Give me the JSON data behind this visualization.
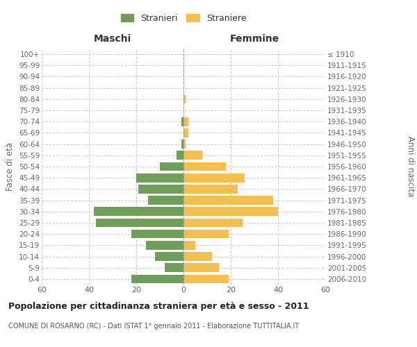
{
  "age_groups": [
    "0-4",
    "5-9",
    "10-14",
    "15-19",
    "20-24",
    "25-29",
    "30-34",
    "35-39",
    "40-44",
    "45-49",
    "50-54",
    "55-59",
    "60-64",
    "65-69",
    "70-74",
    "75-79",
    "80-84",
    "85-89",
    "90-94",
    "95-99",
    "100+"
  ],
  "birth_years": [
    "2006-2010",
    "2001-2005",
    "1996-2000",
    "1991-1995",
    "1986-1990",
    "1981-1985",
    "1976-1980",
    "1971-1975",
    "1966-1970",
    "1961-1965",
    "1956-1960",
    "1951-1955",
    "1946-1950",
    "1941-1945",
    "1936-1940",
    "1931-1935",
    "1926-1930",
    "1921-1925",
    "1916-1920",
    "1911-1915",
    "≤ 1910"
  ],
  "maschi": [
    22,
    8,
    12,
    16,
    22,
    37,
    38,
    15,
    19,
    20,
    10,
    3,
    1,
    0,
    1,
    0,
    0,
    0,
    0,
    0,
    0
  ],
  "femmine": [
    19,
    15,
    12,
    5,
    19,
    25,
    40,
    38,
    23,
    26,
    18,
    8,
    1,
    2,
    2,
    0,
    1,
    0,
    0,
    0,
    0
  ],
  "maschi_color": "#6d9e5a",
  "femmine_color": "#f5bf4f",
  "background_color": "#ffffff",
  "grid_color": "#cccccc",
  "title": "Popolazione per cittadinanza straniera per età e sesso - 2011",
  "subtitle": "COMUNE DI ROSARNO (RC) - Dati ISTAT 1° gennaio 2011 - Elaborazione TUTTITALIA.IT",
  "ylabel_left": "Fasce di età",
  "ylabel_right": "Anni di nascita",
  "label_maschi": "Maschi",
  "label_femmine": "Femmine",
  "legend_stranieri": "Stranieri",
  "legend_straniere": "Straniere",
  "xlim": 60,
  "label_color": "#666666"
}
